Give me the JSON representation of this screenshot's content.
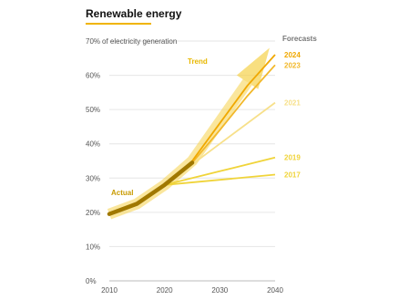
{
  "chart_data": {
    "type": "line",
    "title": "Renewable energy",
    "ylabel": "% of electricity generation",
    "xlim": [
      2010,
      2040
    ],
    "ylim": [
      0,
      70
    ],
    "x_ticks": [
      2010,
      2020,
      2030,
      2040
    ],
    "y_ticks": [
      0,
      10,
      20,
      30,
      40,
      50,
      60,
      70
    ],
    "y_tick_labels": [
      "0%",
      "10%",
      "20%",
      "30%",
      "40%",
      "50%",
      "60%",
      "70%"
    ],
    "grid": "horizontal",
    "legend_heading": "Forecasts",
    "annotations": {
      "actual": "Actual",
      "trend": "Trend"
    },
    "actual": {
      "name": "Actual",
      "color": "#a07800",
      "x": [
        2010,
        2015,
        2020,
        2025
      ],
      "values": [
        19.5,
        22.5,
        28,
        34.5
      ]
    },
    "trend": {
      "name": "Trend",
      "color": "#f5d24a",
      "x": [
        2010,
        2015,
        2020,
        2025,
        2035,
        2039
      ],
      "values": [
        19.5,
        22.5,
        28,
        35,
        58,
        68
      ]
    },
    "series": [
      {
        "name": "2017",
        "color": "#f0d43a",
        "x": [
          2020,
          2030,
          2040
        ],
        "values": [
          28,
          29.5,
          31
        ]
      },
      {
        "name": "2019",
        "color": "#f0d43a",
        "x": [
          2020,
          2030,
          2040
        ],
        "values": [
          28,
          32,
          36
        ]
      },
      {
        "name": "2021",
        "color": "#f7e08a",
        "x": [
          2020,
          2025,
          2030,
          2040
        ],
        "values": [
          28,
          34,
          40,
          52
        ]
      },
      {
        "name": "2023",
        "color": "#f2b82a",
        "x": [
          2020,
          2025,
          2030,
          2035,
          2040
        ],
        "values": [
          28,
          34.5,
          44,
          54,
          63
        ]
      },
      {
        "name": "2024",
        "color": "#f0a800",
        "x": [
          2020,
          2025,
          2030,
          2035,
          2040
        ],
        "values": [
          28,
          35,
          46,
          57,
          66
        ]
      }
    ]
  }
}
